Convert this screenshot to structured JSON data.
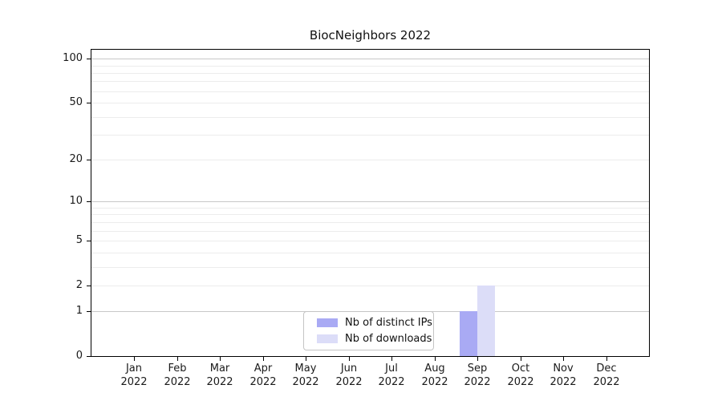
{
  "chart_data": {
    "type": "bar",
    "title": "BiocNeighbors 2022",
    "months": [
      "Jan",
      "Feb",
      "Mar",
      "Apr",
      "May",
      "Jun",
      "Jul",
      "Aug",
      "Sep",
      "Oct",
      "Nov",
      "Dec"
    ],
    "year": "2022",
    "categories": [
      "Jan 2022",
      "Feb 2022",
      "Mar 2022",
      "Apr 2022",
      "May 2022",
      "Jun 2022",
      "Jul 2022",
      "Aug 2022",
      "Sep 2022",
      "Oct 2022",
      "Nov 2022",
      "Dec 2022"
    ],
    "series": [
      {
        "name": "Nb of distinct IPs",
        "color": "#a9aaf4",
        "values": [
          0,
          0,
          0,
          0,
          0,
          0,
          0,
          0,
          1,
          0,
          0,
          0
        ]
      },
      {
        "name": "Nb of downloads",
        "color": "#dcddf8",
        "values": [
          0,
          0,
          0,
          0,
          0,
          0,
          0,
          0,
          2,
          0,
          0,
          0
        ]
      }
    ],
    "y_ticks": [
      0,
      1,
      2,
      5,
      10,
      20,
      50,
      100
    ],
    "scale": "log1p",
    "ylim": [
      0,
      115
    ],
    "xlabel": "",
    "ylabel": "",
    "grid": {
      "major_values": [
        1,
        10,
        100
      ],
      "minor_values": [
        2,
        3,
        4,
        5,
        6,
        7,
        8,
        9,
        20,
        30,
        40,
        50,
        60,
        70,
        80,
        90
      ],
      "major_color": "#c8c8c8",
      "minor_color": "#ececec"
    },
    "legend": {
      "position": "inside-bottom-center"
    },
    "colors": {
      "axis": "#000000",
      "text": "#1a1a1a",
      "background": "#ffffff",
      "legend_border": "#c4c4c4"
    }
  }
}
